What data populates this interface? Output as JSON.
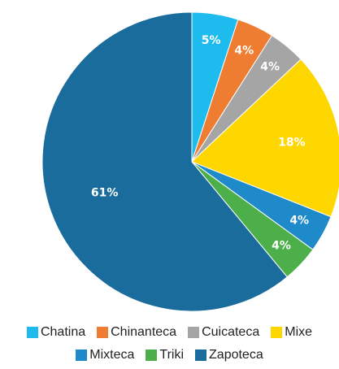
{
  "chart_data": {
    "type": "pie",
    "categories": [
      "Chatina",
      "Chinanteca",
      "Cuicateca",
      "Mixe",
      "Mixteca",
      "Triki",
      "Zapoteca"
    ],
    "values": [
      5,
      4,
      4,
      18,
      4,
      4,
      61
    ],
    "labels": [
      "5%",
      "4%",
      "4%",
      "18%",
      "4%",
      "4%",
      "61%"
    ],
    "colors": [
      "#1EBBEE",
      "#EE7D31",
      "#A5A5A5",
      "#FFD700",
      "#1F8AC9",
      "#4DAF4A",
      "#1A6C9C"
    ],
    "legend": "bottom",
    "start": "top, clockwise"
  }
}
